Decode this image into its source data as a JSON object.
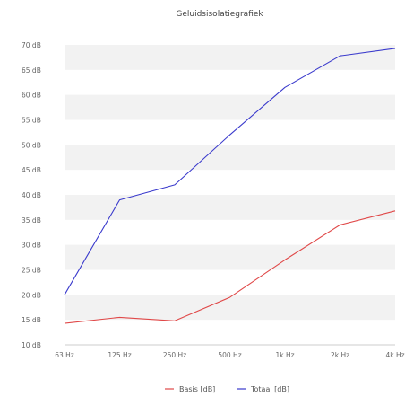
{
  "chart_data": {
    "type": "line",
    "title": "Geluidsisolatiegrafiek",
    "xlabel": "",
    "ylabel": "",
    "categories": [
      "63 Hz",
      "125 Hz",
      "250 Hz",
      "500 Hz",
      "1k Hz",
      "2k Hz",
      "4k Hz"
    ],
    "ylim": [
      10,
      70
    ],
    "yticks": [
      10,
      15,
      20,
      25,
      30,
      35,
      40,
      45,
      50,
      55,
      60,
      65,
      70
    ],
    "ytick_labels": [
      "10 dB",
      "15 dB",
      "20 dB",
      "25 dB",
      "30 dB",
      "35 dB",
      "40 dB",
      "45 dB",
      "50 dB",
      "55 dB",
      "60 dB",
      "65 dB",
      "70 dB"
    ],
    "grid": "alternating horizontal bands",
    "legend_position": "bottom-center",
    "series": [
      {
        "name": "Basis [dB]",
        "color": "#e04848",
        "values": [
          14.3,
          15.5,
          14.8,
          19.5,
          27,
          34,
          36.8
        ]
      },
      {
        "name": "Totaal [dB]",
        "color": "#3a3acc",
        "values": [
          20,
          39,
          42,
          52,
          61.5,
          67.8,
          69.3
        ]
      }
    ]
  }
}
